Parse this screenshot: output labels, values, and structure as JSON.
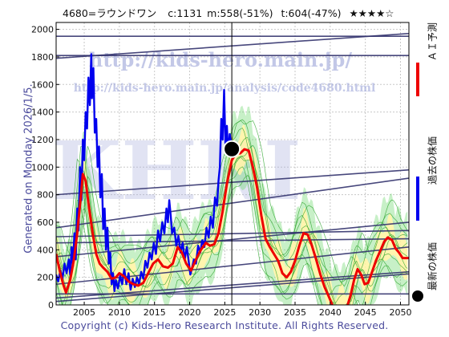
{
  "header": {
    "ticker": "4680=ラウンドワン",
    "current": "c:1131",
    "max_info": "m:558(-51%)",
    "target_info": "t:604(-47%)",
    "rating": "★★★★☆"
  },
  "side_label": "Generated on Monday 2026/1/5.",
  "footer": "Copyright (c) Kids-Hero Research Institute. All Rights Reserved.",
  "watermark": {
    "url1": "http://kids-hero.main.jp/",
    "url2": "http://kids-hero.main.jp/analysis/code4680.html",
    "big": "KHRI"
  },
  "legend": {
    "forecast": "ＡＩ予測",
    "past": "過去の株価",
    "latest": "最新の株価"
  },
  "colors": {
    "forecast": "#ee0000",
    "past": "#0000ee",
    "latest": "#000000",
    "band_green": "#5fd35f",
    "band_yellow": "#fff3a0",
    "trend": "#33336e",
    "grid": "#c8c8c8",
    "watermark": "#aab0dd"
  },
  "chart_data": {
    "type": "line",
    "xlim": [
      2001.0,
      2051.2
    ],
    "ylim": [
      0,
      2050
    ],
    "x_ticks": [
      2005,
      2010,
      2015,
      2020,
      2025,
      2030,
      2035,
      2040,
      2045,
      2050
    ],
    "y_ticks": [
      0,
      200,
      400,
      600,
      800,
      1000,
      1200,
      1400,
      1600,
      1800,
      2000
    ],
    "grid": true,
    "latest_point": {
      "x": 2026.0,
      "y": 1131
    },
    "marker_year": 2026.0,
    "series": [
      {
        "name": "過去の株価",
        "style": "blue",
        "points": [
          [
            2001.0,
            220
          ],
          [
            2001.3,
            170
          ],
          [
            2001.6,
            250
          ],
          [
            2001.9,
            190
          ],
          [
            2002.2,
            300
          ],
          [
            2002.5,
            230
          ],
          [
            2002.8,
            330
          ],
          [
            2003.0,
            220
          ],
          [
            2003.2,
            420
          ],
          [
            2003.4,
            280
          ],
          [
            2003.6,
            520
          ],
          [
            2003.8,
            330
          ],
          [
            2004.0,
            700
          ],
          [
            2004.2,
            540
          ],
          [
            2004.4,
            1000
          ],
          [
            2004.6,
            760
          ],
          [
            2004.8,
            1200
          ],
          [
            2005.0,
            1050
          ],
          [
            2005.2,
            1400
          ],
          [
            2005.4,
            1280
          ],
          [
            2005.6,
            1650
          ],
          [
            2005.8,
            1450
          ],
          [
            2006.0,
            1820
          ],
          [
            2006.1,
            1500
          ],
          [
            2006.3,
            1720
          ],
          [
            2006.5,
            1250
          ],
          [
            2006.7,
            1350
          ],
          [
            2006.9,
            1000
          ],
          [
            2007.1,
            1150
          ],
          [
            2007.3,
            780
          ],
          [
            2007.5,
            950
          ],
          [
            2007.7,
            550
          ],
          [
            2007.9,
            700
          ],
          [
            2008.1,
            400
          ],
          [
            2008.3,
            560
          ],
          [
            2008.5,
            300
          ],
          [
            2008.7,
            380
          ],
          [
            2008.9,
            150
          ],
          [
            2009.1,
            230
          ],
          [
            2009.3,
            100
          ],
          [
            2009.5,
            180
          ],
          [
            2009.8,
            120
          ],
          [
            2010.1,
            210
          ],
          [
            2010.4,
            150
          ],
          [
            2010.7,
            260
          ],
          [
            2011.0,
            150
          ],
          [
            2011.3,
            230
          ],
          [
            2011.6,
            110
          ],
          [
            2011.9,
            190
          ],
          [
            2012.2,
            130
          ],
          [
            2012.5,
            200
          ],
          [
            2012.8,
            150
          ],
          [
            2013.1,
            240
          ],
          [
            2013.4,
            190
          ],
          [
            2013.7,
            320
          ],
          [
            2014.0,
            270
          ],
          [
            2014.3,
            380
          ],
          [
            2014.6,
            330
          ],
          [
            2014.9,
            450
          ],
          [
            2015.2,
            370
          ],
          [
            2015.5,
            540
          ],
          [
            2015.8,
            460
          ],
          [
            2016.1,
            600
          ],
          [
            2016.4,
            520
          ],
          [
            2016.7,
            700
          ],
          [
            2016.9,
            600
          ],
          [
            2017.1,
            760
          ],
          [
            2017.3,
            650
          ],
          [
            2017.5,
            520
          ],
          [
            2017.8,
            560
          ],
          [
            2018.1,
            430
          ],
          [
            2018.4,
            500
          ],
          [
            2018.7,
            380
          ],
          [
            2019.0,
            450
          ],
          [
            2019.3,
            330
          ],
          [
            2019.6,
            420
          ],
          [
            2019.9,
            300
          ],
          [
            2020.1,
            220
          ],
          [
            2020.3,
            260
          ],
          [
            2020.6,
            330
          ],
          [
            2020.9,
            300
          ],
          [
            2021.2,
            430
          ],
          [
            2021.5,
            380
          ],
          [
            2021.8,
            470
          ],
          [
            2022.1,
            420
          ],
          [
            2022.4,
            560
          ],
          [
            2022.7,
            490
          ],
          [
            2023.0,
            640
          ],
          [
            2023.3,
            560
          ],
          [
            2023.6,
            780
          ],
          [
            2023.9,
            720
          ],
          [
            2024.1,
            900
          ],
          [
            2024.3,
            1000
          ],
          [
            2024.5,
            1350
          ],
          [
            2024.7,
            1200
          ],
          [
            2024.9,
            1560
          ],
          [
            2025.1,
            1150
          ],
          [
            2025.3,
            1300
          ],
          [
            2025.5,
            1080
          ],
          [
            2025.7,
            1240
          ],
          [
            2026.0,
            1131
          ]
        ]
      },
      {
        "name": "ＡＩ予測",
        "style": "red",
        "points": [
          [
            2001.0,
            370
          ],
          [
            2001.5,
            250
          ],
          [
            2002.0,
            150
          ],
          [
            2002.4,
            90
          ],
          [
            2003.0,
            180
          ],
          [
            2003.5,
            320
          ],
          [
            2004.0,
            520
          ],
          [
            2004.5,
            780
          ],
          [
            2004.8,
            950
          ],
          [
            2005.2,
            900
          ],
          [
            2005.7,
            700
          ],
          [
            2006.2,
            520
          ],
          [
            2006.7,
            370
          ],
          [
            2007.2,
            300
          ],
          [
            2007.7,
            270
          ],
          [
            2008.3,
            240
          ],
          [
            2008.9,
            190
          ],
          [
            2009.5,
            200
          ],
          [
            2010.0,
            230
          ],
          [
            2010.6,
            210
          ],
          [
            2011.3,
            170
          ],
          [
            2012.0,
            150
          ],
          [
            2012.7,
            140
          ],
          [
            2013.4,
            160
          ],
          [
            2014.1,
            230
          ],
          [
            2014.8,
            300
          ],
          [
            2015.5,
            330
          ],
          [
            2016.2,
            280
          ],
          [
            2016.9,
            270
          ],
          [
            2017.6,
            300
          ],
          [
            2018.3,
            420
          ],
          [
            2018.9,
            380
          ],
          [
            2019.5,
            300
          ],
          [
            2020.2,
            250
          ],
          [
            2020.9,
            330
          ],
          [
            2021.6,
            400
          ],
          [
            2022.3,
            450
          ],
          [
            2022.9,
            430
          ],
          [
            2023.5,
            440
          ],
          [
            2024.1,
            520
          ],
          [
            2024.7,
            680
          ],
          [
            2025.3,
            880
          ],
          [
            2026.0,
            1050
          ],
          [
            2026.6,
            1100
          ],
          [
            2027.2,
            1100
          ],
          [
            2027.8,
            1130
          ],
          [
            2028.4,
            1120
          ],
          [
            2029.0,
            1000
          ],
          [
            2029.6,
            850
          ],
          [
            2030.2,
            650
          ],
          [
            2030.8,
            480
          ],
          [
            2031.4,
            420
          ],
          [
            2032.0,
            370
          ],
          [
            2032.6,
            320
          ],
          [
            2033.2,
            230
          ],
          [
            2033.8,
            200
          ],
          [
            2034.4,
            240
          ],
          [
            2035.0,
            320
          ],
          [
            2035.6,
            430
          ],
          [
            2036.2,
            520
          ],
          [
            2036.8,
            510
          ],
          [
            2037.4,
            430
          ],
          [
            2038.0,
            330
          ],
          [
            2038.6,
            220
          ],
          [
            2039.2,
            130
          ],
          [
            2039.8,
            60
          ],
          [
            2040.3,
            0
          ],
          [
            2040.8,
            -40
          ],
          [
            2041.5,
            -20
          ],
          [
            2042.3,
            -30
          ],
          [
            2042.9,
            70
          ],
          [
            2043.4,
            180
          ],
          [
            2043.9,
            260
          ],
          [
            2044.4,
            220
          ],
          [
            2044.9,
            150
          ],
          [
            2045.4,
            160
          ],
          [
            2045.9,
            230
          ],
          [
            2046.5,
            320
          ],
          [
            2047.1,
            390
          ],
          [
            2047.7,
            460
          ],
          [
            2048.2,
            490
          ],
          [
            2048.8,
            470
          ],
          [
            2049.3,
            410
          ],
          [
            2049.8,
            380
          ],
          [
            2050.3,
            340
          ],
          [
            2051.2,
            340
          ]
        ]
      }
    ],
    "trend_lines": [
      [
        [
          2001.0,
          1950
        ],
        [
          2051.2,
          1950
        ]
      ],
      [
        [
          2001.0,
          1810
        ],
        [
          2051.2,
          1810
        ]
      ],
      [
        [
          2001.0,
          1790
        ],
        [
          2051.2,
          1970
        ]
      ],
      [
        [
          2001.0,
          800
        ],
        [
          2051.2,
          980
        ]
      ],
      [
        [
          2001.0,
          560
        ],
        [
          2051.2,
          920
        ]
      ],
      [
        [
          2001.0,
          495
        ],
        [
          2051.2,
          540
        ]
      ],
      [
        [
          2001.0,
          450
        ],
        [
          2051.2,
          480
        ]
      ],
      [
        [
          2001.0,
          350
        ],
        [
          2051.2,
          600
        ]
      ],
      [
        [
          2001.0,
          150
        ],
        [
          2051.2,
          420
        ]
      ],
      [
        [
          2001.0,
          80
        ],
        [
          2051.2,
          80
        ]
      ],
      [
        [
          2001.0,
          50
        ],
        [
          2051.2,
          240
        ]
      ],
      [
        [
          2001.0,
          25
        ],
        [
          2051.2,
          225
        ]
      ]
    ]
  }
}
